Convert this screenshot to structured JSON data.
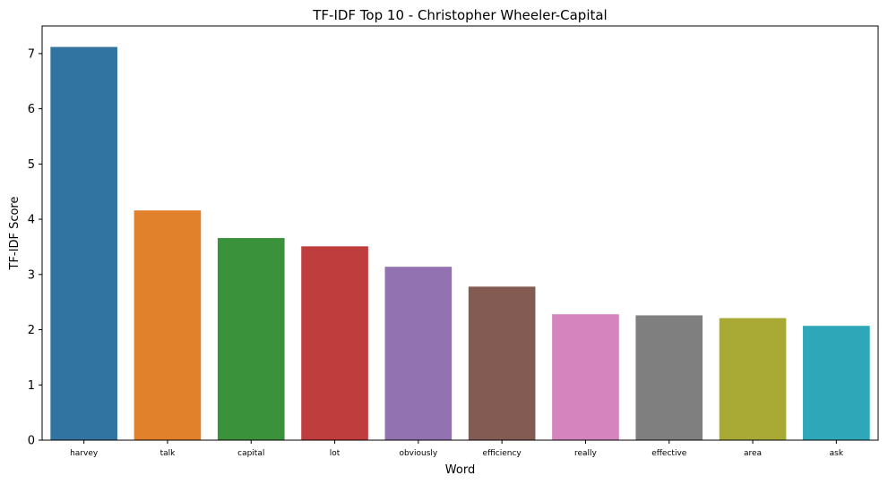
{
  "chart_data": {
    "type": "bar",
    "title": "TF-IDF Top 10 - Christopher Wheeler-Capital",
    "xlabel": "Word",
    "ylabel": "TF-IDF Score",
    "categories": [
      "harvey",
      "talk",
      "capital",
      "lot",
      "obviously",
      "efficiency",
      "really",
      "effective",
      "area",
      "ask"
    ],
    "values": [
      7.12,
      4.16,
      3.66,
      3.51,
      3.14,
      2.78,
      2.28,
      2.26,
      2.21,
      2.07
    ],
    "colors": [
      "#3274a1",
      "#e1812c",
      "#3a923a",
      "#c03d3e",
      "#9372b2",
      "#845b53",
      "#d684bd",
      "#7f7f7f",
      "#a9aa35",
      "#2ea8b8"
    ],
    "ylim": [
      0,
      7.5
    ],
    "yticks": [
      0,
      1,
      2,
      3,
      4,
      5,
      6,
      7
    ],
    "grid": false,
    "legend": "none"
  }
}
